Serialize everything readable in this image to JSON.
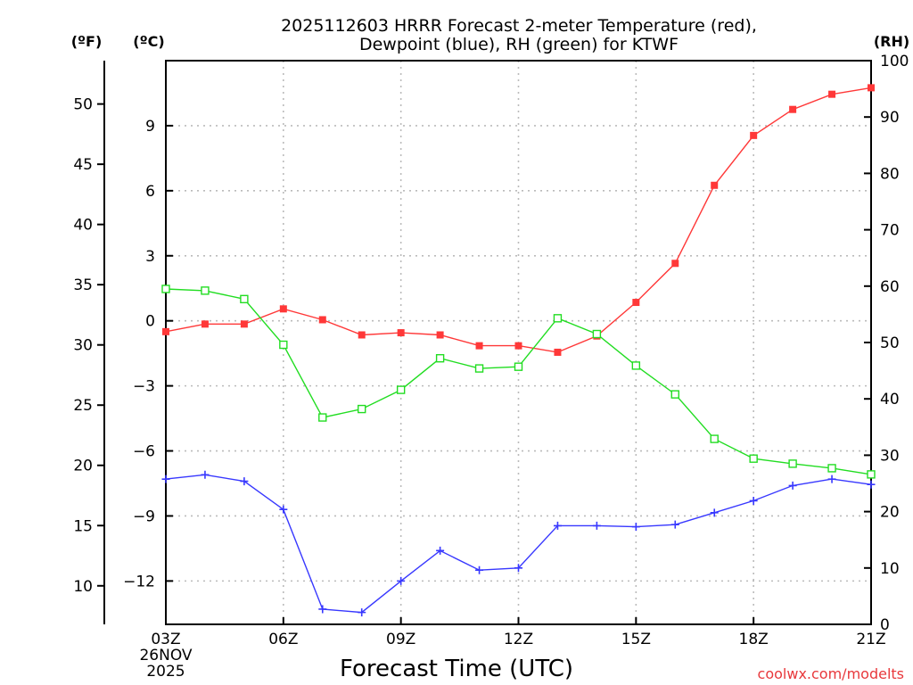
{
  "chart_data": {
    "type": "line",
    "title_line1": "2025112603 HRRR Forecast 2-meter Temperature (red),",
    "title_line2": "Dewpoint (blue), RH (green) for KTWF",
    "xlabel": "Forecast Time (UTC)",
    "credit": "coolwx.com/modelts",
    "unit_left_f": "(ºF)",
    "unit_left_c": "(ºC)",
    "unit_right_rh": "(RH)",
    "start_date_line1": "26NOV",
    "start_date_line2": "2025",
    "hours": [
      3,
      4,
      5,
      6,
      7,
      8,
      9,
      10,
      11,
      12,
      13,
      14,
      15,
      16,
      17,
      18,
      19,
      20,
      21
    ],
    "x_ticks": [
      {
        "hour": 3,
        "label": "03Z"
      },
      {
        "hour": 6,
        "label": "06Z"
      },
      {
        "hour": 9,
        "label": "09Z"
      },
      {
        "hour": 12,
        "label": "12Z"
      },
      {
        "hour": 15,
        "label": "15Z"
      },
      {
        "hour": 18,
        "label": "18Z"
      },
      {
        "hour": 21,
        "label": "21Z"
      }
    ],
    "celsius_range": [
      -14,
      12
    ],
    "celsius_ticks": [
      9,
      6,
      3,
      0,
      -3,
      -6,
      -9,
      -12
    ],
    "fahrenheit_ticks": [
      50,
      45,
      40,
      35,
      30,
      25,
      20,
      15,
      10
    ],
    "rh_range": [
      0,
      100
    ],
    "rh_ticks": [
      0,
      10,
      20,
      30,
      40,
      50,
      60,
      70,
      80,
      90,
      100
    ],
    "series": [
      {
        "name": "Temperature",
        "unit": "C",
        "color": "#ff3838",
        "marker": "filled-square",
        "values": [
          -0.5,
          -0.15,
          -0.15,
          0.55,
          0.05,
          -0.65,
          -0.55,
          -0.65,
          -1.15,
          -1.15,
          -1.45,
          -0.7,
          0.85,
          2.65,
          6.25,
          8.55,
          9.75,
          10.45,
          10.75
        ]
      },
      {
        "name": "Dewpoint",
        "unit": "C",
        "color": "#3838ff",
        "marker": "plus",
        "values": [
          -7.3,
          -7.1,
          -7.4,
          -8.7,
          -13.3,
          -13.45,
          -12.0,
          -10.6,
          -11.5,
          -11.4,
          -9.45,
          -9.45,
          -9.5,
          -9.4,
          -8.85,
          -8.3,
          -7.6,
          -7.3,
          -7.55
        ]
      },
      {
        "name": "RH",
        "unit": "%",
        "color": "#22dd22",
        "marker": "open-square",
        "values": [
          59.5,
          59.2,
          57.7,
          49.6,
          36.7,
          38.2,
          41.6,
          47.2,
          45.4,
          45.7,
          54.3,
          51.5,
          45.9,
          40.8,
          32.9,
          29.4,
          28.5,
          27.7,
          26.6
        ]
      }
    ]
  }
}
